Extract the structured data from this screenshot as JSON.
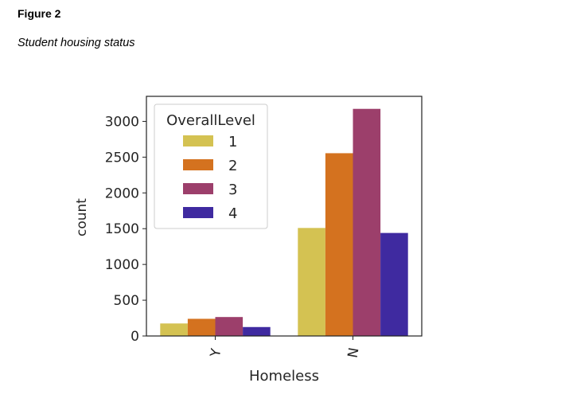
{
  "figure": {
    "label": "Figure 2",
    "caption": "Student housing status"
  },
  "chart_data": {
    "type": "bar",
    "categories": [
      "Y",
      "N"
    ],
    "series": [
      {
        "name": "1",
        "color": "#d4c252",
        "values": [
          175,
          1510
        ]
      },
      {
        "name": "2",
        "color": "#d4721f",
        "values": [
          240,
          2555
        ]
      },
      {
        "name": "3",
        "color": "#9c3f6b",
        "values": [
          265,
          3175
        ]
      },
      {
        "name": "4",
        "color": "#3f2aa0",
        "values": [
          125,
          1440
        ]
      }
    ],
    "title": "",
    "xlabel": "Homeless",
    "ylabel": "count",
    "ylim": [
      0,
      3350
    ],
    "yticks": [
      0,
      500,
      1000,
      1500,
      2000,
      2500,
      3000
    ],
    "legend": {
      "title": "OverallLevel",
      "placement": "top-left"
    },
    "grid": false
  }
}
